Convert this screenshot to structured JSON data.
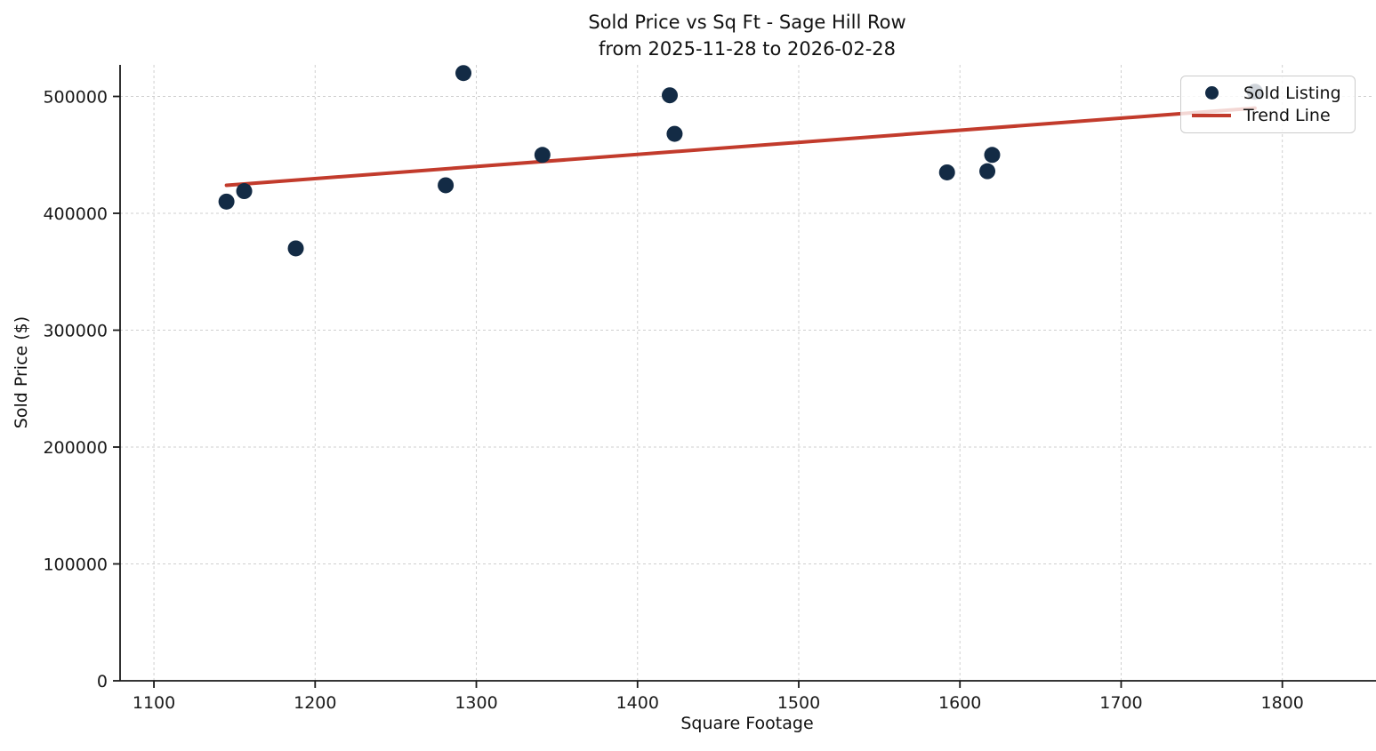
{
  "title": {
    "line1": "Sold Price vs Sq Ft - Sage Hill Row",
    "line2": "from 2025-11-28 to 2026-02-28"
  },
  "axes": {
    "x_label": "Square Footage",
    "y_label": "Sold Price ($)"
  },
  "legend": {
    "items": [
      {
        "label": "Sold Listing",
        "swatch": "dot"
      },
      {
        "label": "Trend Line",
        "swatch": "line"
      }
    ]
  },
  "colors": {
    "point": "#132b45",
    "trend": "#c23b2c",
    "grid": "#cfcfcf",
    "axis": "#1a1a1a",
    "text": "#111111"
  },
  "chart_data": {
    "type": "scatter",
    "title": "Sold Price vs Sq Ft - Sage Hill Row from 2025-11-28 to 2026-02-28",
    "xlabel": "Square Footage",
    "ylabel": "Sold Price ($)",
    "x_ticks": [
      1100,
      1200,
      1300,
      1400,
      1500,
      1600,
      1700,
      1800
    ],
    "y_ticks": [
      0,
      100000,
      200000,
      300000,
      400000,
      500000
    ],
    "xlim": [
      1079,
      1857
    ],
    "ylim": [
      0,
      527000
    ],
    "grid": "dashed-both",
    "legend_position": "upper-right",
    "series": [
      {
        "name": "Sold Listing",
        "type": "scatter",
        "points": [
          [
            1145,
            410000
          ],
          [
            1156,
            419000
          ],
          [
            1188,
            370000
          ],
          [
            1281,
            424000
          ],
          [
            1292,
            520000
          ],
          [
            1341,
            450000
          ],
          [
            1420,
            501000
          ],
          [
            1423,
            468000
          ],
          [
            1592,
            435000
          ],
          [
            1617,
            436000
          ],
          [
            1620,
            450000
          ],
          [
            1783,
            504000
          ]
        ]
      },
      {
        "name": "Trend Line",
        "type": "line",
        "points": [
          [
            1145,
            424000
          ],
          [
            1783,
            490000
          ]
        ]
      }
    ]
  }
}
